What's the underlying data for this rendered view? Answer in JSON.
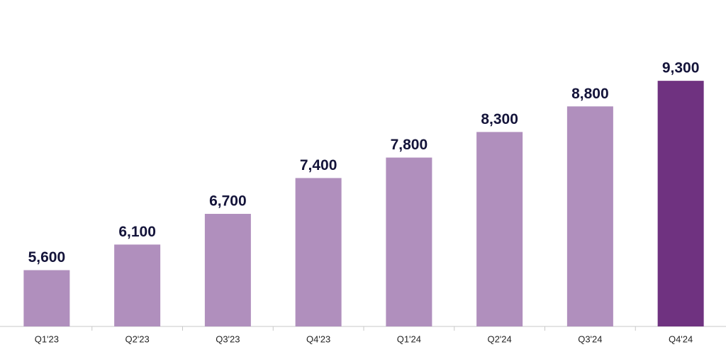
{
  "chart_data": {
    "type": "bar",
    "categories": [
      "Q1'23",
      "Q2'23",
      "Q3'23",
      "Q4'23",
      "Q1'24",
      "Q2'24",
      "Q3'24",
      "Q4'24"
    ],
    "values": [
      5600,
      6100,
      6700,
      7400,
      7800,
      8300,
      8800,
      9300
    ],
    "value_labels": [
      "5,600",
      "6,100",
      "6,700",
      "7,400",
      "7,800",
      "8,300",
      "8,800",
      "9,300"
    ],
    "colors": [
      "#b08fbd",
      "#b08fbd",
      "#b08fbd",
      "#b08fbd",
      "#b08fbd",
      "#b08fbd",
      "#b08fbd",
      "#6f3280"
    ],
    "ylim": [
      4500,
      9800
    ]
  }
}
